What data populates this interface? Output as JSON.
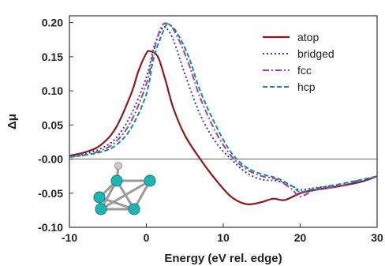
{
  "chart_data": {
    "type": "line",
    "title": "",
    "xlabel": "Energy (eV rel. edge)",
    "ylabel": "Δμ",
    "xlim": [
      -10,
      30
    ],
    "ylim": [
      -0.1,
      0.21
    ],
    "xticks": [
      -10,
      0,
      10,
      20,
      30
    ],
    "xtick_labels": [
      "-10",
      "0",
      "10",
      "20",
      "30"
    ],
    "yticks": [
      -0.1,
      -0.05,
      0.0,
      0.05,
      0.1,
      0.15,
      0.2
    ],
    "ytick_labels": [
      "-0.10",
      "-0.05",
      "-0.00",
      "0.05",
      "0.10",
      "0.15",
      "0.20"
    ],
    "zero_line": true,
    "grid": false,
    "legend_position": "top-right",
    "series": [
      {
        "name": "atop",
        "color": "#8b1a1a",
        "style": "solid",
        "points": [
          [
            -10,
            0.005
          ],
          [
            -8,
            0.01
          ],
          [
            -6,
            0.02
          ],
          [
            -4,
            0.045
          ],
          [
            -2,
            0.095
          ],
          [
            -1,
            0.13
          ],
          [
            0,
            0.155
          ],
          [
            0.5,
            0.158
          ],
          [
            1.5,
            0.15
          ],
          [
            2.5,
            0.115
          ],
          [
            3.5,
            0.075
          ],
          [
            5,
            0.035
          ],
          [
            7,
            0.0
          ],
          [
            9,
            -0.03
          ],
          [
            11,
            -0.055
          ],
          [
            13,
            -0.066
          ],
          [
            15,
            -0.063
          ],
          [
            16.5,
            -0.058
          ],
          [
            18,
            -0.06
          ],
          [
            20,
            -0.05
          ],
          [
            22,
            -0.045
          ],
          [
            25,
            -0.04
          ],
          [
            28,
            -0.033
          ],
          [
            30,
            -0.025
          ]
        ]
      },
      {
        "name": "bridged",
        "color": "#3a3a8c",
        "style": "dotted",
        "points": [
          [
            -10,
            0.005
          ],
          [
            -8,
            0.008
          ],
          [
            -6,
            0.015
          ],
          [
            -4,
            0.03
          ],
          [
            -2,
            0.065
          ],
          [
            0,
            0.12
          ],
          [
            1,
            0.165
          ],
          [
            2,
            0.19
          ],
          [
            2.5,
            0.193
          ],
          [
            3.5,
            0.175
          ],
          [
            5,
            0.125
          ],
          [
            7,
            0.065
          ],
          [
            9,
            0.025
          ],
          [
            11,
            0.0
          ],
          [
            13,
            -0.02
          ],
          [
            15,
            -0.03
          ],
          [
            17,
            -0.032
          ],
          [
            19,
            -0.04
          ],
          [
            20,
            -0.045
          ],
          [
            22,
            -0.042
          ],
          [
            25,
            -0.038
          ],
          [
            28,
            -0.033
          ],
          [
            30,
            -0.025
          ]
        ]
      },
      {
        "name": "fcc",
        "color": "#a040a0",
        "style": "dashdot",
        "points": [
          [
            -10,
            0.003
          ],
          [
            -8,
            0.006
          ],
          [
            -6,
            0.012
          ],
          [
            -4,
            0.025
          ],
          [
            -2,
            0.055
          ],
          [
            0,
            0.11
          ],
          [
            1,
            0.16
          ],
          [
            2,
            0.195
          ],
          [
            3,
            0.197
          ],
          [
            4,
            0.18
          ],
          [
            5.5,
            0.14
          ],
          [
            7,
            0.09
          ],
          [
            9,
            0.04
          ],
          [
            11,
            0.005
          ],
          [
            13,
            -0.015
          ],
          [
            15,
            -0.025
          ],
          [
            17,
            -0.03
          ],
          [
            19,
            -0.045
          ],
          [
            20,
            -0.055
          ],
          [
            22,
            -0.045
          ],
          [
            25,
            -0.04
          ],
          [
            28,
            -0.03
          ],
          [
            30,
            -0.027
          ]
        ]
      },
      {
        "name": "hcp",
        "color": "#1a8c8c",
        "style": "dashed",
        "points": [
          [
            -10,
            0.003
          ],
          [
            -8,
            0.006
          ],
          [
            -6,
            0.01
          ],
          [
            -4,
            0.02
          ],
          [
            -2,
            0.045
          ],
          [
            0,
            0.095
          ],
          [
            1,
            0.15
          ],
          [
            2.5,
            0.195
          ],
          [
            3,
            0.197
          ],
          [
            4,
            0.185
          ],
          [
            5.5,
            0.15
          ],
          [
            7,
            0.1
          ],
          [
            9,
            0.05
          ],
          [
            11,
            0.01
          ],
          [
            13,
            -0.012
          ],
          [
            15,
            -0.022
          ],
          [
            17,
            -0.028
          ],
          [
            19,
            -0.04
          ],
          [
            20,
            -0.048
          ],
          [
            22,
            -0.043
          ],
          [
            25,
            -0.037
          ],
          [
            28,
            -0.03
          ],
          [
            30,
            -0.025
          ]
        ]
      }
    ]
  },
  "inset": {
    "description_icon": "cluster-molecule-icon",
    "atom_color": "#1fb5b5",
    "adsorbate_color": "#cccccc"
  }
}
